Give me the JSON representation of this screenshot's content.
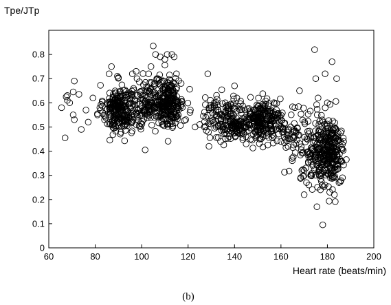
{
  "chart_data": {
    "type": "scatter",
    "title": "",
    "xlabel": "Heart rate (beats/min)",
    "ylabel": "Tpe/JTp",
    "caption": "(b)",
    "xlim": [
      60,
      200
    ],
    "ylim": [
      0,
      0.9
    ],
    "xticks": [
      60,
      80,
      100,
      120,
      140,
      160,
      180,
      200
    ],
    "yticks": [
      0,
      0.1,
      0.2,
      0.3,
      0.4,
      0.5,
      0.6,
      0.7,
      0.8
    ],
    "grid": false,
    "marker": "open-circle",
    "clusters": [
      {
        "center": [
          90,
          0.575
        ],
        "spread": [
          3.2,
          0.05
        ],
        "count": 230
      },
      {
        "center": [
          103,
          0.59
        ],
        "spread": [
          5.0,
          0.05
        ],
        "count": 170
      },
      {
        "center": [
          112,
          0.605
        ],
        "spread": [
          3.0,
          0.05
        ],
        "count": 220
      },
      {
        "center": [
          131,
          0.54
        ],
        "spread": [
          2.5,
          0.045
        ],
        "count": 55
      },
      {
        "center": [
          140,
          0.525
        ],
        "spread": [
          3.0,
          0.04
        ],
        "count": 140
      },
      {
        "center": [
          151,
          0.525
        ],
        "spread": [
          3.2,
          0.04
        ],
        "count": 190
      },
      {
        "center": [
          158,
          0.51
        ],
        "spread": [
          2.5,
          0.045
        ],
        "count": 60
      },
      {
        "center": [
          167,
          0.45
        ],
        "spread": [
          2.5,
          0.06
        ],
        "count": 50
      },
      {
        "center": [
          176,
          0.41
        ],
        "spread": [
          3.0,
          0.07
        ],
        "count": 160
      },
      {
        "center": [
          182,
          0.39
        ],
        "spread": [
          2.5,
          0.065
        ],
        "count": 190
      }
    ],
    "points": [
      [
        65.5,
        0.58
      ],
      [
        67,
        0.455
      ],
      [
        67.5,
        0.625
      ],
      [
        68,
        0.63
      ],
      [
        68,
        0.61
      ],
      [
        69,
        0.6
      ],
      [
        70.5,
        0.645
      ],
      [
        71,
        0.69
      ],
      [
        70.5,
        0.55
      ],
      [
        71,
        0.53
      ],
      [
        73,
        0.635
      ],
      [
        74,
        0.49
      ],
      [
        76,
        0.57
      ],
      [
        77,
        0.52
      ],
      [
        79,
        0.62
      ],
      [
        81,
        0.55
      ],
      [
        82,
        0.58
      ],
      [
        84,
        0.53
      ],
      [
        86,
        0.72
      ],
      [
        87,
        0.75
      ],
      [
        96,
        0.72
      ],
      [
        98,
        0.7
      ],
      [
        101.5,
        0.405
      ],
      [
        103,
        0.72
      ],
      [
        104,
        0.75
      ],
      [
        105,
        0.835
      ],
      [
        106,
        0.8
      ],
      [
        107,
        0.7
      ],
      [
        108,
        0.79
      ],
      [
        110,
        0.78
      ],
      [
        111,
        0.8
      ],
      [
        113,
        0.8
      ],
      [
        114,
        0.79
      ],
      [
        115,
        0.72
      ],
      [
        117,
        0.68
      ],
      [
        119,
        0.53
      ],
      [
        121,
        0.57
      ],
      [
        123,
        0.5
      ],
      [
        125,
        0.51
      ],
      [
        127,
        0.5
      ],
      [
        128.5,
        0.72
      ],
      [
        129,
        0.42
      ],
      [
        134,
        0.44
      ],
      [
        136,
        0.6
      ],
      [
        140,
        0.67
      ],
      [
        141,
        0.62
      ],
      [
        145,
        0.43
      ],
      [
        147,
        0.45
      ],
      [
        160,
        0.44
      ],
      [
        162,
        0.45
      ],
      [
        164,
        0.45
      ],
      [
        166,
        0.58
      ],
      [
        168,
        0.65
      ],
      [
        169,
        0.32
      ],
      [
        170,
        0.22
      ],
      [
        171,
        0.27
      ],
      [
        172,
        0.26
      ],
      [
        173,
        0.3
      ],
      [
        174.5,
        0.82
      ],
      [
        175,
        0.7
      ],
      [
        175.5,
        0.17
      ],
      [
        176,
        0.62
      ],
      [
        177,
        0.24
      ],
      [
        178,
        0.095
      ],
      [
        179,
        0.72
      ],
      [
        180,
        0.6
      ],
      [
        181,
        0.23
      ],
      [
        182,
        0.77
      ],
      [
        183,
        0.22
      ],
      [
        184,
        0.7
      ],
      [
        185,
        0.27
      ],
      [
        186,
        0.36
      ],
      [
        187,
        0.44
      ],
      [
        186.5,
        0.29
      ]
    ]
  }
}
